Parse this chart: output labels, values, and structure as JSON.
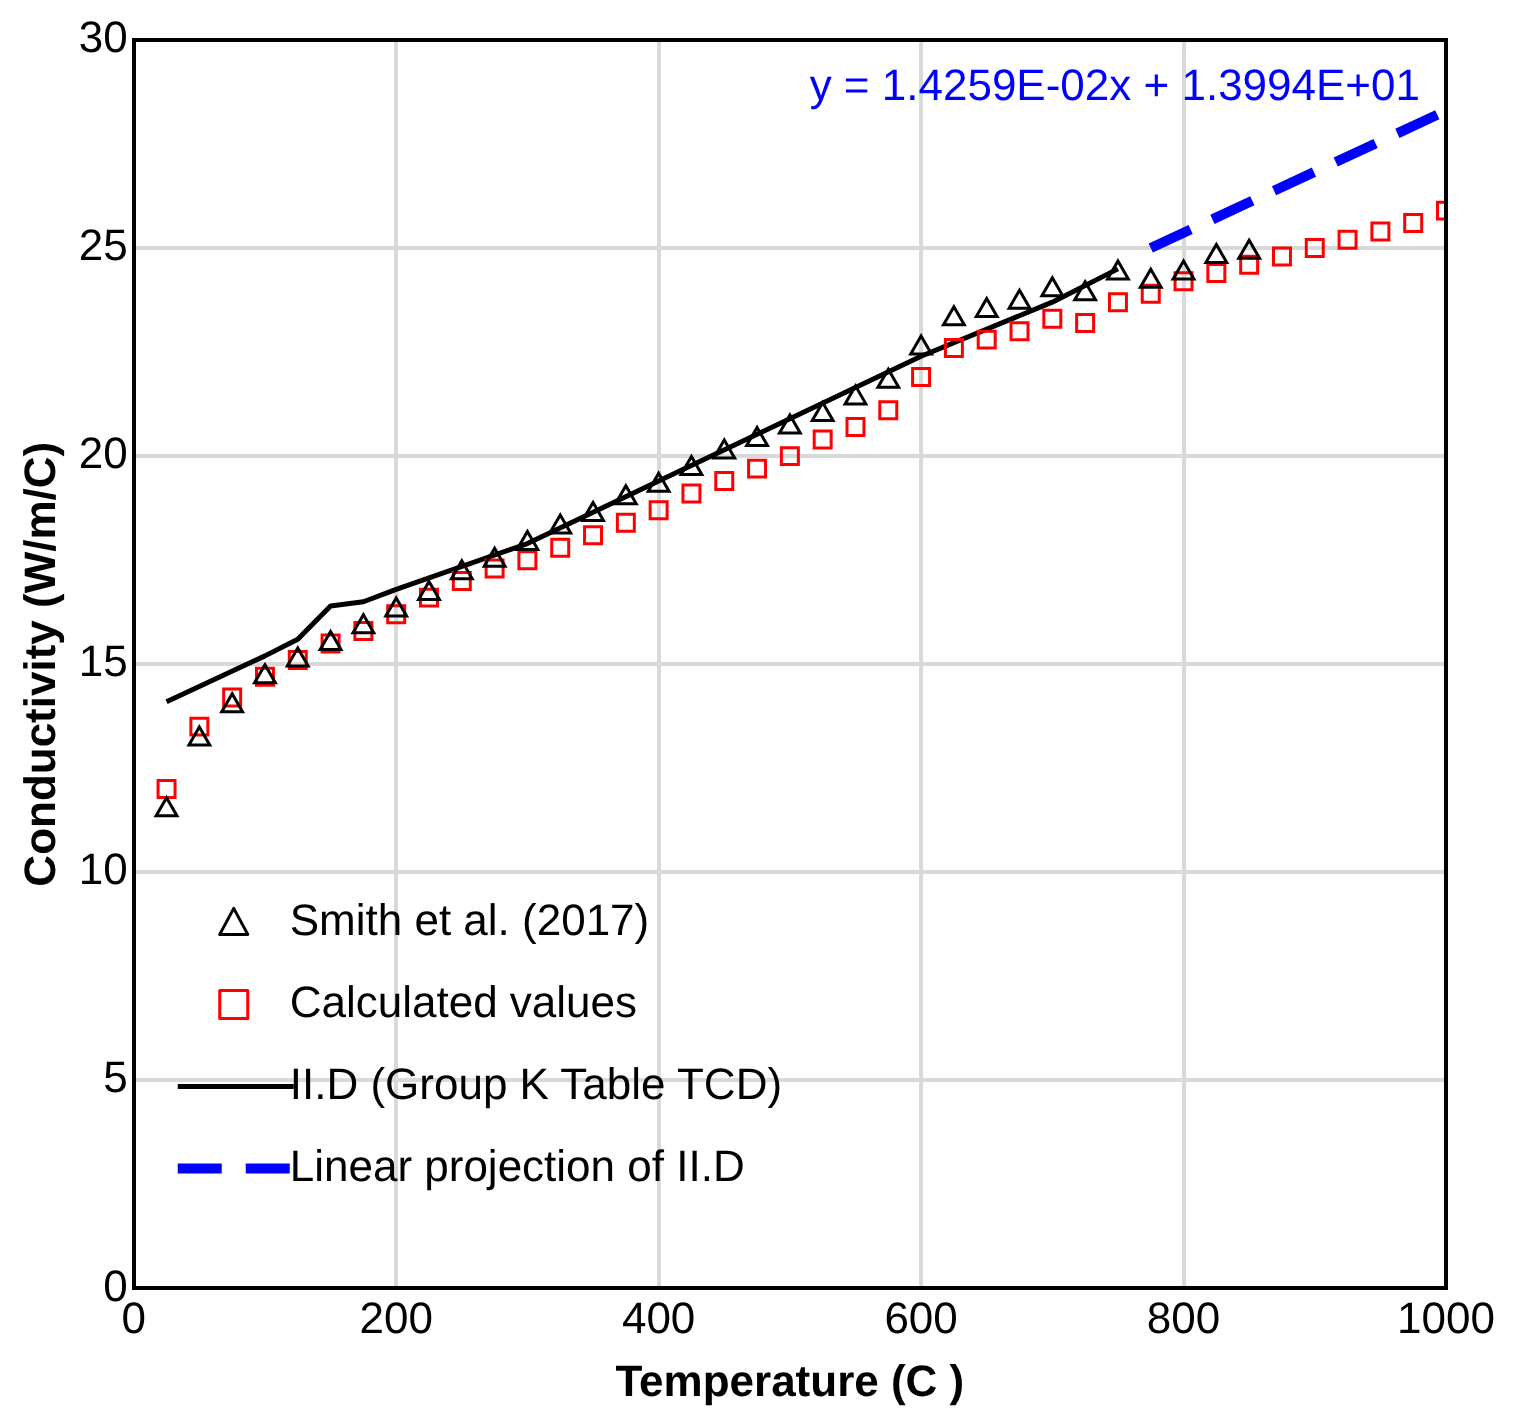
{
  "chart_data": {
    "type": "scatter",
    "xlabel": "Temperature (C )",
    "ylabel": "Conductivity (W/m/C)",
    "xlim": [
      0,
      1000
    ],
    "xticks": [
      0,
      200,
      400,
      600,
      800,
      1000
    ],
    "ylim": [
      0,
      30
    ],
    "yticks": [
      0,
      5,
      10,
      15,
      20,
      25,
      30
    ],
    "grid": true,
    "legend": "bottom left",
    "annotations": [
      "y = 1.4259E-02x + 1.3994E+01"
    ],
    "series": [
      {
        "name": "Smith et al. (2017)",
        "marker": "triangle",
        "color": "#000000",
        "x": [
          25,
          50,
          75,
          100,
          125,
          150,
          175,
          200,
          225,
          250,
          275,
          300,
          325,
          350,
          375,
          400,
          425,
          450,
          475,
          500,
          525,
          550,
          575,
          600,
          625,
          650,
          675,
          700,
          725,
          750,
          775,
          800,
          825,
          850
        ],
        "values": [
          11.5,
          13.2,
          14.0,
          14.7,
          15.1,
          15.5,
          15.9,
          16.3,
          16.7,
          17.2,
          17.5,
          17.9,
          18.3,
          18.6,
          19.0,
          19.3,
          19.7,
          20.1,
          20.4,
          20.7,
          21.0,
          21.4,
          21.8,
          22.6,
          23.3,
          23.5,
          23.7,
          24.0,
          23.9,
          24.4,
          24.2,
          24.4,
          24.8,
          24.9
        ]
      },
      {
        "name": "Calculated values",
        "marker": "square",
        "color": "#ff0000",
        "x": [
          25,
          50,
          75,
          100,
          125,
          150,
          175,
          200,
          225,
          250,
          275,
          300,
          325,
          350,
          375,
          400,
          425,
          450,
          475,
          500,
          525,
          550,
          575,
          600,
          625,
          650,
          675,
          700,
          725,
          750,
          775,
          800,
          825,
          850,
          875,
          900,
          925,
          950,
          975,
          1000
        ],
        "values": [
          12.0,
          13.5,
          14.2,
          14.7,
          15.1,
          15.5,
          15.8,
          16.2,
          16.6,
          17.0,
          17.3,
          17.5,
          17.8,
          18.1,
          18.4,
          18.7,
          19.1,
          19.4,
          19.7,
          20.0,
          20.4,
          20.7,
          21.1,
          21.9,
          22.6,
          22.8,
          23.0,
          23.3,
          23.2,
          23.7,
          23.9,
          24.2,
          24.4,
          24.6,
          24.8,
          25.0,
          25.2,
          25.4,
          25.6,
          25.9
        ]
      },
      {
        "name": "II.D (Group K Table TCD)",
        "type": "line",
        "marker": "none",
        "line_style": "solid",
        "color": "#000000",
        "x": [
          25,
          100,
          125,
          150,
          175,
          200,
          300,
          400,
          500,
          600,
          700,
          750
        ],
        "values": [
          14.1,
          15.2,
          15.6,
          16.4,
          16.5,
          16.8,
          17.9,
          19.4,
          20.9,
          22.4,
          23.7,
          24.5
        ]
      },
      {
        "name": "Linear projection of II.D",
        "type": "line",
        "marker": "none",
        "line_style": "dashed",
        "color": "#0000ff",
        "x": [
          775,
          1000
        ],
        "values": [
          25.0,
          28.3
        ]
      }
    ]
  }
}
